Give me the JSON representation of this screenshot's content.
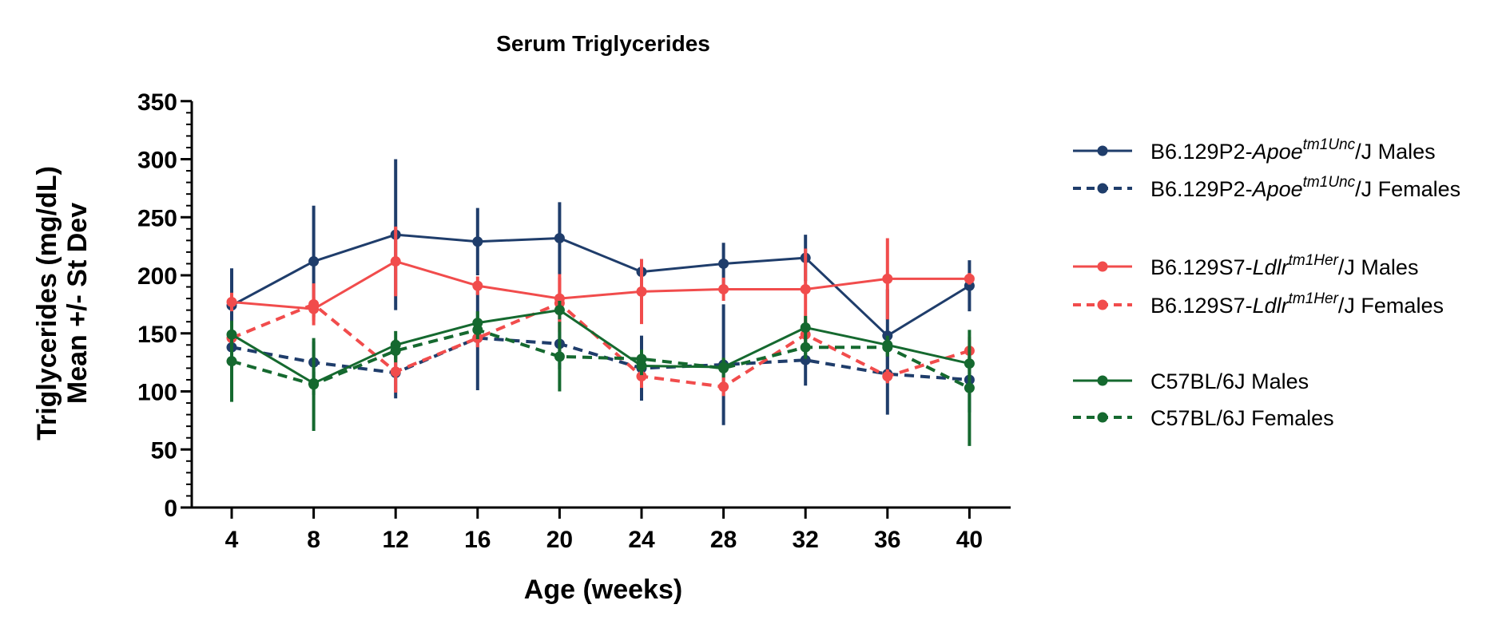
{
  "chart_data": {
    "type": "line",
    "title": "Serum Triglycerides",
    "xlabel": "Age (weeks)",
    "ylabel_lines": [
      "Triglycerides (mg/dL)",
      "Mean +/-  St Dev"
    ],
    "x": [
      4,
      8,
      12,
      16,
      20,
      24,
      28,
      32,
      36,
      40
    ],
    "x_tick_labels": [
      "4",
      "8",
      "12",
      "16",
      "20",
      "24",
      "28",
      "32",
      "36",
      "40"
    ],
    "ylim": [
      0,
      350
    ],
    "y_major_ticks": [
      0,
      50,
      100,
      150,
      200,
      250,
      300,
      350
    ],
    "y_tick_labels": [
      "0",
      "50",
      "100",
      "150",
      "200",
      "250",
      "300",
      "350"
    ],
    "y_minor_step": 10,
    "grid": false,
    "legend_position": "right",
    "series": [
      {
        "name": "B6.129P2-Apoe tm1Unc /J Males",
        "legend": {
          "pre": "B6.129P2-",
          "gene": "Apoe",
          "sup": "tm1Unc",
          "post": "/J Males"
        },
        "color": "#1f3d6b",
        "dashed": false,
        "values": [
          174,
          212,
          235,
          229,
          232,
          203,
          210,
          215,
          148,
          191
        ],
        "errors": [
          32,
          48,
          65,
          29,
          31,
          11,
          18,
          20,
          40,
          22
        ]
      },
      {
        "name": "B6.129P2-Apoe tm1Unc /J Females",
        "legend": {
          "pre": "B6.129P2-",
          "gene": "Apoe",
          "sup": "tm1Unc",
          "post": "/J Females"
        },
        "color": "#1f3d6b",
        "dashed": true,
        "values": [
          138,
          125,
          116,
          146,
          141,
          120,
          123,
          127,
          115,
          110
        ],
        "errors": [
          18,
          18,
          22,
          45,
          22,
          28,
          52,
          22,
          35,
          28
        ]
      },
      {
        "name": "B6.129S7-Ldlr tm1Her /J Males",
        "legend": {
          "pre": "B6.129S7-",
          "gene": "Ldlr",
          "sup": "tm1Her",
          "post": "/J Males"
        },
        "color": "#f14c4c",
        "dashed": false,
        "values": [
          177,
          171,
          212,
          191,
          180,
          186,
          188,
          188,
          197,
          197
        ],
        "errors": [
          8,
          10,
          30,
          8,
          18,
          28,
          10,
          35,
          35,
          5
        ]
      },
      {
        "name": "B6.129S7-Ldlr tm1Her /J Females",
        "legend": {
          "pre": "B6.129S7-",
          "gene": "Ldlr",
          "sup": "tm1Her",
          "post": "/J Females"
        },
        "color": "#f14c4c",
        "dashed": true,
        "values": [
          146,
          175,
          117,
          146,
          176,
          113,
          104,
          149,
          113,
          135
        ],
        "errors": [
          8,
          18,
          18,
          8,
          25,
          10,
          8,
          12,
          6,
          12
        ]
      },
      {
        "name": "C57BL/6J Males",
        "legend": {
          "pre": "C57BL/6J Males",
          "gene": "",
          "sup": "",
          "post": ""
        },
        "color": "#15692f",
        "dashed": false,
        "values": [
          149,
          107,
          140,
          159,
          170,
          122,
          121,
          155,
          140,
          124
        ],
        "errors": [
          10,
          10,
          12,
          10,
          8,
          8,
          8,
          10,
          8,
          6
        ]
      },
      {
        "name": "C57BL/6J Females",
        "legend": {
          "pre": "C57BL/6J Females",
          "gene": "",
          "sup": "",
          "post": ""
        },
        "color": "#15692f",
        "dashed": true,
        "values": [
          126,
          106,
          135,
          153,
          130,
          128,
          120,
          138,
          138,
          103
        ],
        "errors": [
          35,
          40,
          10,
          8,
          30,
          8,
          8,
          10,
          8,
          50
        ]
      }
    ]
  }
}
